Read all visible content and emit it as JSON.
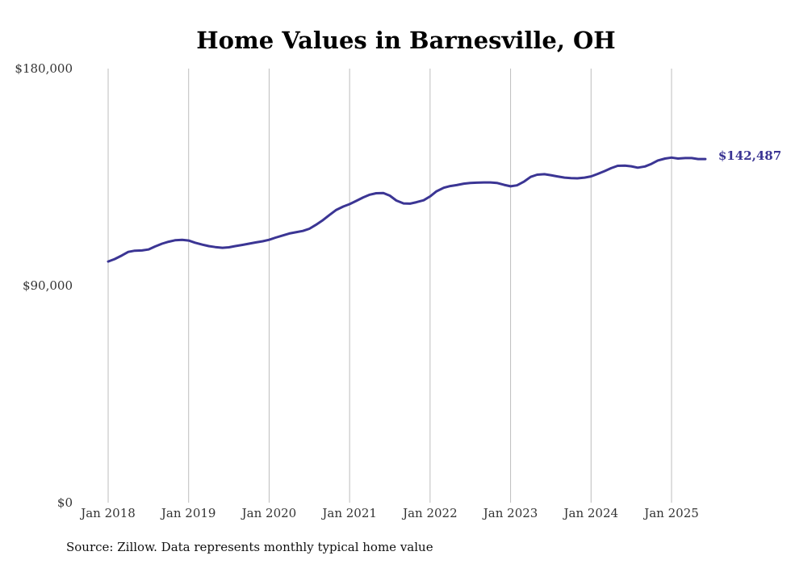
{
  "chart_data": {
    "type": "line",
    "title": "Home Values in Barnesville, OH",
    "xlabel": "",
    "ylabel": "",
    "ylim": [
      0,
      180000
    ],
    "yticks": [
      {
        "value": 0,
        "label": "$0"
      },
      {
        "value": 90000,
        "label": "$90,000"
      },
      {
        "value": 180000,
        "label": "$180,000"
      }
    ],
    "xticks": [
      {
        "value": 2018.0,
        "label": "Jan 2018"
      },
      {
        "value": 2019.0,
        "label": "Jan 2019"
      },
      {
        "value": 2020.0,
        "label": "Jan 2020"
      },
      {
        "value": 2021.0,
        "label": "Jan 2021"
      },
      {
        "value": 2022.0,
        "label": "Jan 2022"
      },
      {
        "value": 2023.0,
        "label": "Jan 2023"
      },
      {
        "value": 2024.0,
        "label": "Jan 2024"
      },
      {
        "value": 2025.0,
        "label": "Jan 2025"
      }
    ],
    "xlim": [
      2018.0,
      2025.42
    ],
    "grid": "vertical",
    "series": [
      {
        "color": "#3b3594",
        "end_label": "$142,487",
        "x": [
          2018.0,
          2018.08,
          2018.17,
          2018.25,
          2018.33,
          2018.42,
          2018.5,
          2018.58,
          2018.67,
          2018.75,
          2018.83,
          2018.92,
          2019.0,
          2019.08,
          2019.17,
          2019.25,
          2019.33,
          2019.42,
          2019.5,
          2019.58,
          2019.67,
          2019.75,
          2019.83,
          2019.92,
          2020.0,
          2020.08,
          2020.17,
          2020.25,
          2020.33,
          2020.42,
          2020.5,
          2020.58,
          2020.67,
          2020.75,
          2020.83,
          2020.92,
          2021.0,
          2021.08,
          2021.17,
          2021.25,
          2021.33,
          2021.42,
          2021.5,
          2021.58,
          2021.67,
          2021.75,
          2021.83,
          2021.92,
          2022.0,
          2022.08,
          2022.17,
          2022.25,
          2022.33,
          2022.42,
          2022.5,
          2022.58,
          2022.67,
          2022.75,
          2022.83,
          2022.92,
          2023.0,
          2023.08,
          2023.17,
          2023.25,
          2023.33,
          2023.42,
          2023.5,
          2023.58,
          2023.67,
          2023.75,
          2023.83,
          2023.92,
          2024.0,
          2024.08,
          2024.17,
          2024.25,
          2024.33,
          2024.42,
          2024.5,
          2024.58,
          2024.67,
          2024.75,
          2024.83,
          2024.92,
          2025.0,
          2025.08,
          2025.17,
          2025.25,
          2025.33,
          2025.42
        ],
        "values": [
          100000,
          101000,
          102500,
          104000,
          104500,
          104600,
          105000,
          106200,
          107400,
          108200,
          108800,
          109000,
          108700,
          107800,
          107000,
          106400,
          106000,
          105700,
          105900,
          106400,
          106900,
          107400,
          107900,
          108400,
          109000,
          109900,
          110800,
          111600,
          112100,
          112700,
          113600,
          115200,
          117200,
          119300,
          121300,
          122800,
          123800,
          125100,
          126600,
          127700,
          128300,
          128400,
          127300,
          125300,
          124100,
          124000,
          124600,
          125400,
          127000,
          129100,
          130600,
          131300,
          131700,
          132300,
          132600,
          132700,
          132800,
          132800,
          132600,
          131800,
          131200,
          131600,
          133200,
          135100,
          136000,
          136200,
          135800,
          135300,
          134800,
          134600,
          134500,
          134800,
          135300,
          136300,
          137500,
          138700,
          139700,
          139800,
          139500,
          138900,
          139400,
          140500,
          141900,
          142700,
          143100,
          142700,
          142900,
          142900,
          142487,
          142487
        ]
      }
    ]
  },
  "footer": {
    "source": "Source: Zillow. Data represents monthly typical home value"
  }
}
